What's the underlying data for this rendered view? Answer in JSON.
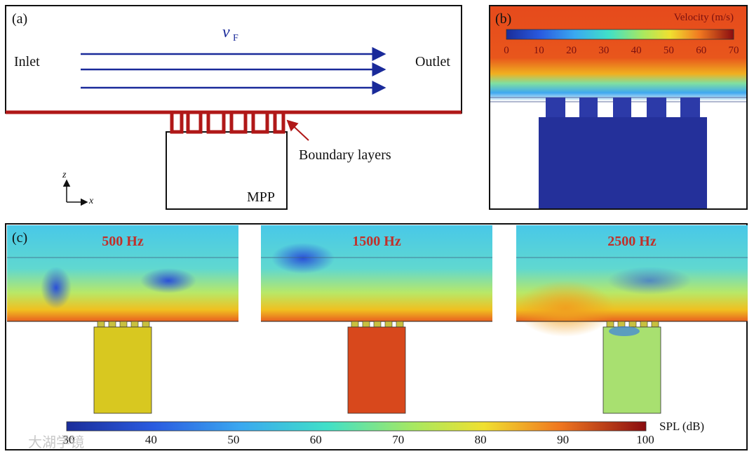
{
  "panel_a": {
    "label": "(a)",
    "velocity_symbol": "v",
    "velocity_subscript": "F",
    "inlet": "Inlet",
    "outlet": "Outlet",
    "boundary_layers": "Boundary layers",
    "mpp": "MPP",
    "axis_z": "z",
    "axis_x": "x"
  },
  "panel_b": {
    "label": "(b)",
    "colorbar_title": "Velocity (m/s)",
    "colorbar_ticks": [
      "0",
      "10",
      "20",
      "30",
      "40",
      "50",
      "60",
      "70"
    ]
  },
  "panel_c": {
    "label": "(c)",
    "frequencies": [
      "500 Hz",
      "1500 Hz",
      "2500 Hz"
    ],
    "cavity_colors": [
      "#d8c820",
      "#d8481c",
      "#a8e070"
    ],
    "colorbar_title": "SPL (dB)",
    "colorbar_ticks": [
      "30",
      "40",
      "50",
      "60",
      "70",
      "80",
      "90",
      "100"
    ]
  },
  "watermark": "大湖学镜"
}
